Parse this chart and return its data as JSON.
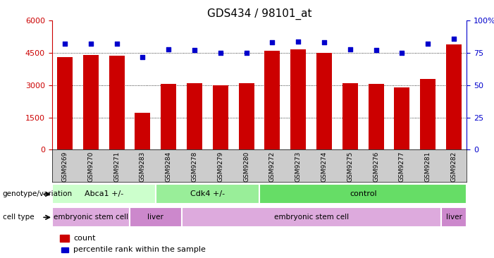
{
  "title": "GDS434 / 98101_at",
  "samples": [
    "GSM9269",
    "GSM9270",
    "GSM9271",
    "GSM9283",
    "GSM9284",
    "GSM9278",
    "GSM9279",
    "GSM9280",
    "GSM9272",
    "GSM9273",
    "GSM9274",
    "GSM9275",
    "GSM9276",
    "GSM9277",
    "GSM9281",
    "GSM9282"
  ],
  "counts": [
    4300,
    4400,
    4380,
    1700,
    3050,
    3080,
    2980,
    3080,
    4600,
    4680,
    4500,
    3100,
    3060,
    2900,
    3300,
    4900
  ],
  "percentiles": [
    82,
    82,
    82,
    72,
    78,
    77,
    75,
    75,
    83,
    84,
    83,
    78,
    77,
    75,
    82,
    86
  ],
  "bar_color": "#cc0000",
  "dot_color": "#0000cc",
  "ylim_left": [
    0,
    6000
  ],
  "yticks_left": [
    0,
    1500,
    3000,
    4500,
    6000
  ],
  "ylim_right": [
    0,
    100
  ],
  "yticks_right": [
    0,
    25,
    50,
    75,
    100
  ],
  "right_tick_labels": [
    "0",
    "25",
    "50",
    "75",
    "100%"
  ],
  "genotype_groups": [
    {
      "label": "Abca1 +/-",
      "start": 0,
      "end": 4,
      "color": "#ccffcc"
    },
    {
      "label": "Cdk4 +/-",
      "start": 4,
      "end": 8,
      "color": "#99ee99"
    },
    {
      "label": "control",
      "start": 8,
      "end": 16,
      "color": "#66dd66"
    }
  ],
  "celltype_groups": [
    {
      "label": "embryonic stem cell",
      "start": 0,
      "end": 3,
      "color": "#ddaadd"
    },
    {
      "label": "liver",
      "start": 3,
      "end": 5,
      "color": "#cc88cc"
    },
    {
      "label": "embryonic stem cell",
      "start": 5,
      "end": 15,
      "color": "#ddaadd"
    },
    {
      "label": "liver",
      "start": 15,
      "end": 16,
      "color": "#cc88cc"
    }
  ],
  "legend_count_color": "#cc0000",
  "legend_dot_color": "#0000cc",
  "background_color": "#ffffff",
  "xticklabel_bg": "#cccccc",
  "dotted_gridlines": [
    1500,
    3000,
    4500
  ]
}
